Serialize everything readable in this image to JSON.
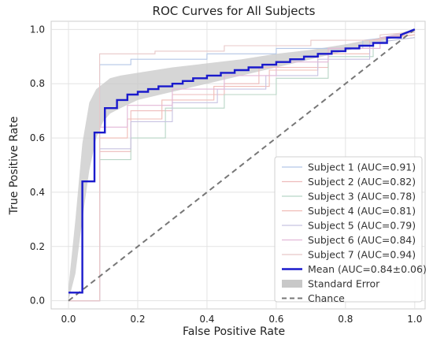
{
  "chart_data": {
    "type": "line",
    "title": "ROC Curves for All Subjects",
    "xlabel": "False Positive Rate",
    "ylabel": "True Positive Rate",
    "xlim": [
      -0.05,
      1.03
    ],
    "ylim": [
      -0.03,
      1.03
    ],
    "grid": true,
    "legend_position": "lower-right",
    "x_ticks": [
      "0.0",
      "0.2",
      "0.4",
      "0.6",
      "0.8",
      "1.0"
    ],
    "x_tick_values": [
      0.0,
      0.2,
      0.4,
      0.6,
      0.8,
      1.0
    ],
    "y_ticks": [
      "0.0",
      "0.2",
      "0.4",
      "0.6",
      "0.8",
      "1.0"
    ],
    "y_tick_values": [
      0.0,
      0.2,
      0.4,
      0.6,
      0.8,
      1.0
    ],
    "subjects": [
      {
        "name": "Subject 1 (AUC=0.91)",
        "color": "#b3c6e6",
        "points": [
          [
            0,
            0
          ],
          [
            0.09,
            0
          ],
          [
            0.09,
            0.87
          ],
          [
            0.18,
            0.87
          ],
          [
            0.18,
            0.89
          ],
          [
            0.4,
            0.89
          ],
          [
            0.4,
            0.91
          ],
          [
            0.6,
            0.91
          ],
          [
            0.6,
            0.93
          ],
          [
            0.85,
            0.93
          ],
          [
            0.85,
            0.96
          ],
          [
            1,
            0.98
          ]
        ]
      },
      {
        "name": "Subject 2 (AUC=0.82)",
        "color": "#eebbbb",
        "points": [
          [
            0,
            0
          ],
          [
            0.09,
            0
          ],
          [
            0.09,
            0.55
          ],
          [
            0.18,
            0.55
          ],
          [
            0.18,
            0.7
          ],
          [
            0.3,
            0.7
          ],
          [
            0.3,
            0.76
          ],
          [
            0.45,
            0.76
          ],
          [
            0.45,
            0.8
          ],
          [
            0.55,
            0.8
          ],
          [
            0.55,
            0.86
          ],
          [
            0.75,
            0.86
          ],
          [
            0.75,
            0.93
          ],
          [
            0.9,
            0.93
          ],
          [
            0.9,
            0.97
          ],
          [
            1,
            0.98
          ]
        ]
      },
      {
        "name": "Subject 3 (AUC=0.78)",
        "color": "#b8d6c6",
        "points": [
          [
            0,
            0
          ],
          [
            0.09,
            0
          ],
          [
            0.09,
            0.52
          ],
          [
            0.18,
            0.52
          ],
          [
            0.18,
            0.6
          ],
          [
            0.28,
            0.6
          ],
          [
            0.28,
            0.71
          ],
          [
            0.45,
            0.71
          ],
          [
            0.45,
            0.76
          ],
          [
            0.6,
            0.76
          ],
          [
            0.6,
            0.82
          ],
          [
            0.75,
            0.82
          ],
          [
            0.75,
            0.9
          ],
          [
            0.88,
            0.9
          ],
          [
            0.88,
            0.95
          ],
          [
            1,
            0.97
          ]
        ]
      },
      {
        "name": "Subject 4 (AUC=0.81)",
        "color": "#f0bcb6",
        "points": [
          [
            0,
            0
          ],
          [
            0.09,
            0
          ],
          [
            0.09,
            0.6
          ],
          [
            0.17,
            0.6
          ],
          [
            0.17,
            0.67
          ],
          [
            0.27,
            0.67
          ],
          [
            0.27,
            0.74
          ],
          [
            0.42,
            0.74
          ],
          [
            0.42,
            0.79
          ],
          [
            0.58,
            0.79
          ],
          [
            0.58,
            0.85
          ],
          [
            0.72,
            0.85
          ],
          [
            0.72,
            0.91
          ],
          [
            0.87,
            0.91
          ],
          [
            0.87,
            0.96
          ],
          [
            1,
            0.98
          ]
        ]
      },
      {
        "name": "Subject 5 (AUC=0.79)",
        "color": "#c8c3e2",
        "points": [
          [
            0,
            0
          ],
          [
            0.09,
            0
          ],
          [
            0.09,
            0.56
          ],
          [
            0.18,
            0.56
          ],
          [
            0.18,
            0.66
          ],
          [
            0.3,
            0.66
          ],
          [
            0.3,
            0.73
          ],
          [
            0.43,
            0.73
          ],
          [
            0.43,
            0.78
          ],
          [
            0.57,
            0.78
          ],
          [
            0.57,
            0.83
          ],
          [
            0.72,
            0.83
          ],
          [
            0.72,
            0.89
          ],
          [
            0.87,
            0.89
          ],
          [
            0.87,
            0.95
          ],
          [
            1,
            0.97
          ]
        ]
      },
      {
        "name": "Subject 6 (AUC=0.84)",
        "color": "#e2b8d8",
        "points": [
          [
            0,
            0
          ],
          [
            0.09,
            0
          ],
          [
            0.09,
            0.64
          ],
          [
            0.17,
            0.64
          ],
          [
            0.17,
            0.72
          ],
          [
            0.3,
            0.72
          ],
          [
            0.3,
            0.78
          ],
          [
            0.45,
            0.78
          ],
          [
            0.45,
            0.83
          ],
          [
            0.6,
            0.83
          ],
          [
            0.6,
            0.88
          ],
          [
            0.75,
            0.88
          ],
          [
            0.75,
            0.93
          ],
          [
            0.9,
            0.93
          ],
          [
            0.9,
            0.97
          ],
          [
            1,
            0.99
          ]
        ]
      },
      {
        "name": "Subject 7 (AUC=0.94)",
        "color": "#e8c8c8",
        "points": [
          [
            0,
            0
          ],
          [
            0.09,
            0
          ],
          [
            0.09,
            0.91
          ],
          [
            0.25,
            0.91
          ],
          [
            0.25,
            0.92
          ],
          [
            0.45,
            0.92
          ],
          [
            0.45,
            0.94
          ],
          [
            0.7,
            0.94
          ],
          [
            0.7,
            0.96
          ],
          [
            0.9,
            0.96
          ],
          [
            0.9,
            0.98
          ],
          [
            1,
            0.99
          ]
        ]
      }
    ],
    "mean": {
      "name": "Mean (AUC=0.84±0.06)",
      "color": "#1a1acc",
      "points": [
        [
          0,
          0.03
        ],
        [
          0.04,
          0.03
        ],
        [
          0.04,
          0.44
        ],
        [
          0.075,
          0.44
        ],
        [
          0.075,
          0.62
        ],
        [
          0.105,
          0.62
        ],
        [
          0.105,
          0.71
        ],
        [
          0.14,
          0.71
        ],
        [
          0.14,
          0.74
        ],
        [
          0.17,
          0.74
        ],
        [
          0.17,
          0.76
        ],
        [
          0.2,
          0.76
        ],
        [
          0.2,
          0.77
        ],
        [
          0.23,
          0.77
        ],
        [
          0.23,
          0.78
        ],
        [
          0.26,
          0.78
        ],
        [
          0.26,
          0.79
        ],
        [
          0.3,
          0.79
        ],
        [
          0.3,
          0.8
        ],
        [
          0.33,
          0.8
        ],
        [
          0.33,
          0.81
        ],
        [
          0.36,
          0.81
        ],
        [
          0.36,
          0.82
        ],
        [
          0.4,
          0.82
        ],
        [
          0.4,
          0.83
        ],
        [
          0.44,
          0.83
        ],
        [
          0.44,
          0.84
        ],
        [
          0.48,
          0.84
        ],
        [
          0.48,
          0.85
        ],
        [
          0.52,
          0.85
        ],
        [
          0.52,
          0.86
        ],
        [
          0.56,
          0.86
        ],
        [
          0.56,
          0.87
        ],
        [
          0.6,
          0.87
        ],
        [
          0.6,
          0.88
        ],
        [
          0.64,
          0.88
        ],
        [
          0.64,
          0.89
        ],
        [
          0.68,
          0.89
        ],
        [
          0.68,
          0.9
        ],
        [
          0.72,
          0.9
        ],
        [
          0.72,
          0.91
        ],
        [
          0.76,
          0.91
        ],
        [
          0.76,
          0.92
        ],
        [
          0.8,
          0.92
        ],
        [
          0.8,
          0.93
        ],
        [
          0.84,
          0.93
        ],
        [
          0.84,
          0.94
        ],
        [
          0.88,
          0.94
        ],
        [
          0.88,
          0.95
        ],
        [
          0.92,
          0.95
        ],
        [
          0.92,
          0.97
        ],
        [
          0.96,
          0.97
        ],
        [
          0.96,
          0.98
        ],
        [
          1,
          1.0
        ]
      ]
    },
    "standard_error": {
      "name": "Standard Error",
      "color": "#c8c8c8",
      "x": [
        0.0,
        0.02,
        0.04,
        0.06,
        0.08,
        0.1,
        0.12,
        0.15,
        0.2,
        0.3,
        0.4,
        0.5,
        0.6,
        0.7,
        0.8,
        0.9,
        1.0
      ],
      "upper": [
        0.05,
        0.3,
        0.58,
        0.73,
        0.78,
        0.8,
        0.82,
        0.83,
        0.84,
        0.86,
        0.875,
        0.89,
        0.91,
        0.925,
        0.945,
        0.97,
        1.0
      ],
      "lower": [
        0.0,
        0.1,
        0.3,
        0.48,
        0.6,
        0.66,
        0.69,
        0.71,
        0.74,
        0.77,
        0.8,
        0.83,
        0.86,
        0.89,
        0.92,
        0.955,
        0.99
      ]
    },
    "chance": {
      "name": "Chance",
      "color": "#777777",
      "points": [
        [
          0,
          0
        ],
        [
          1,
          1
        ]
      ]
    }
  }
}
